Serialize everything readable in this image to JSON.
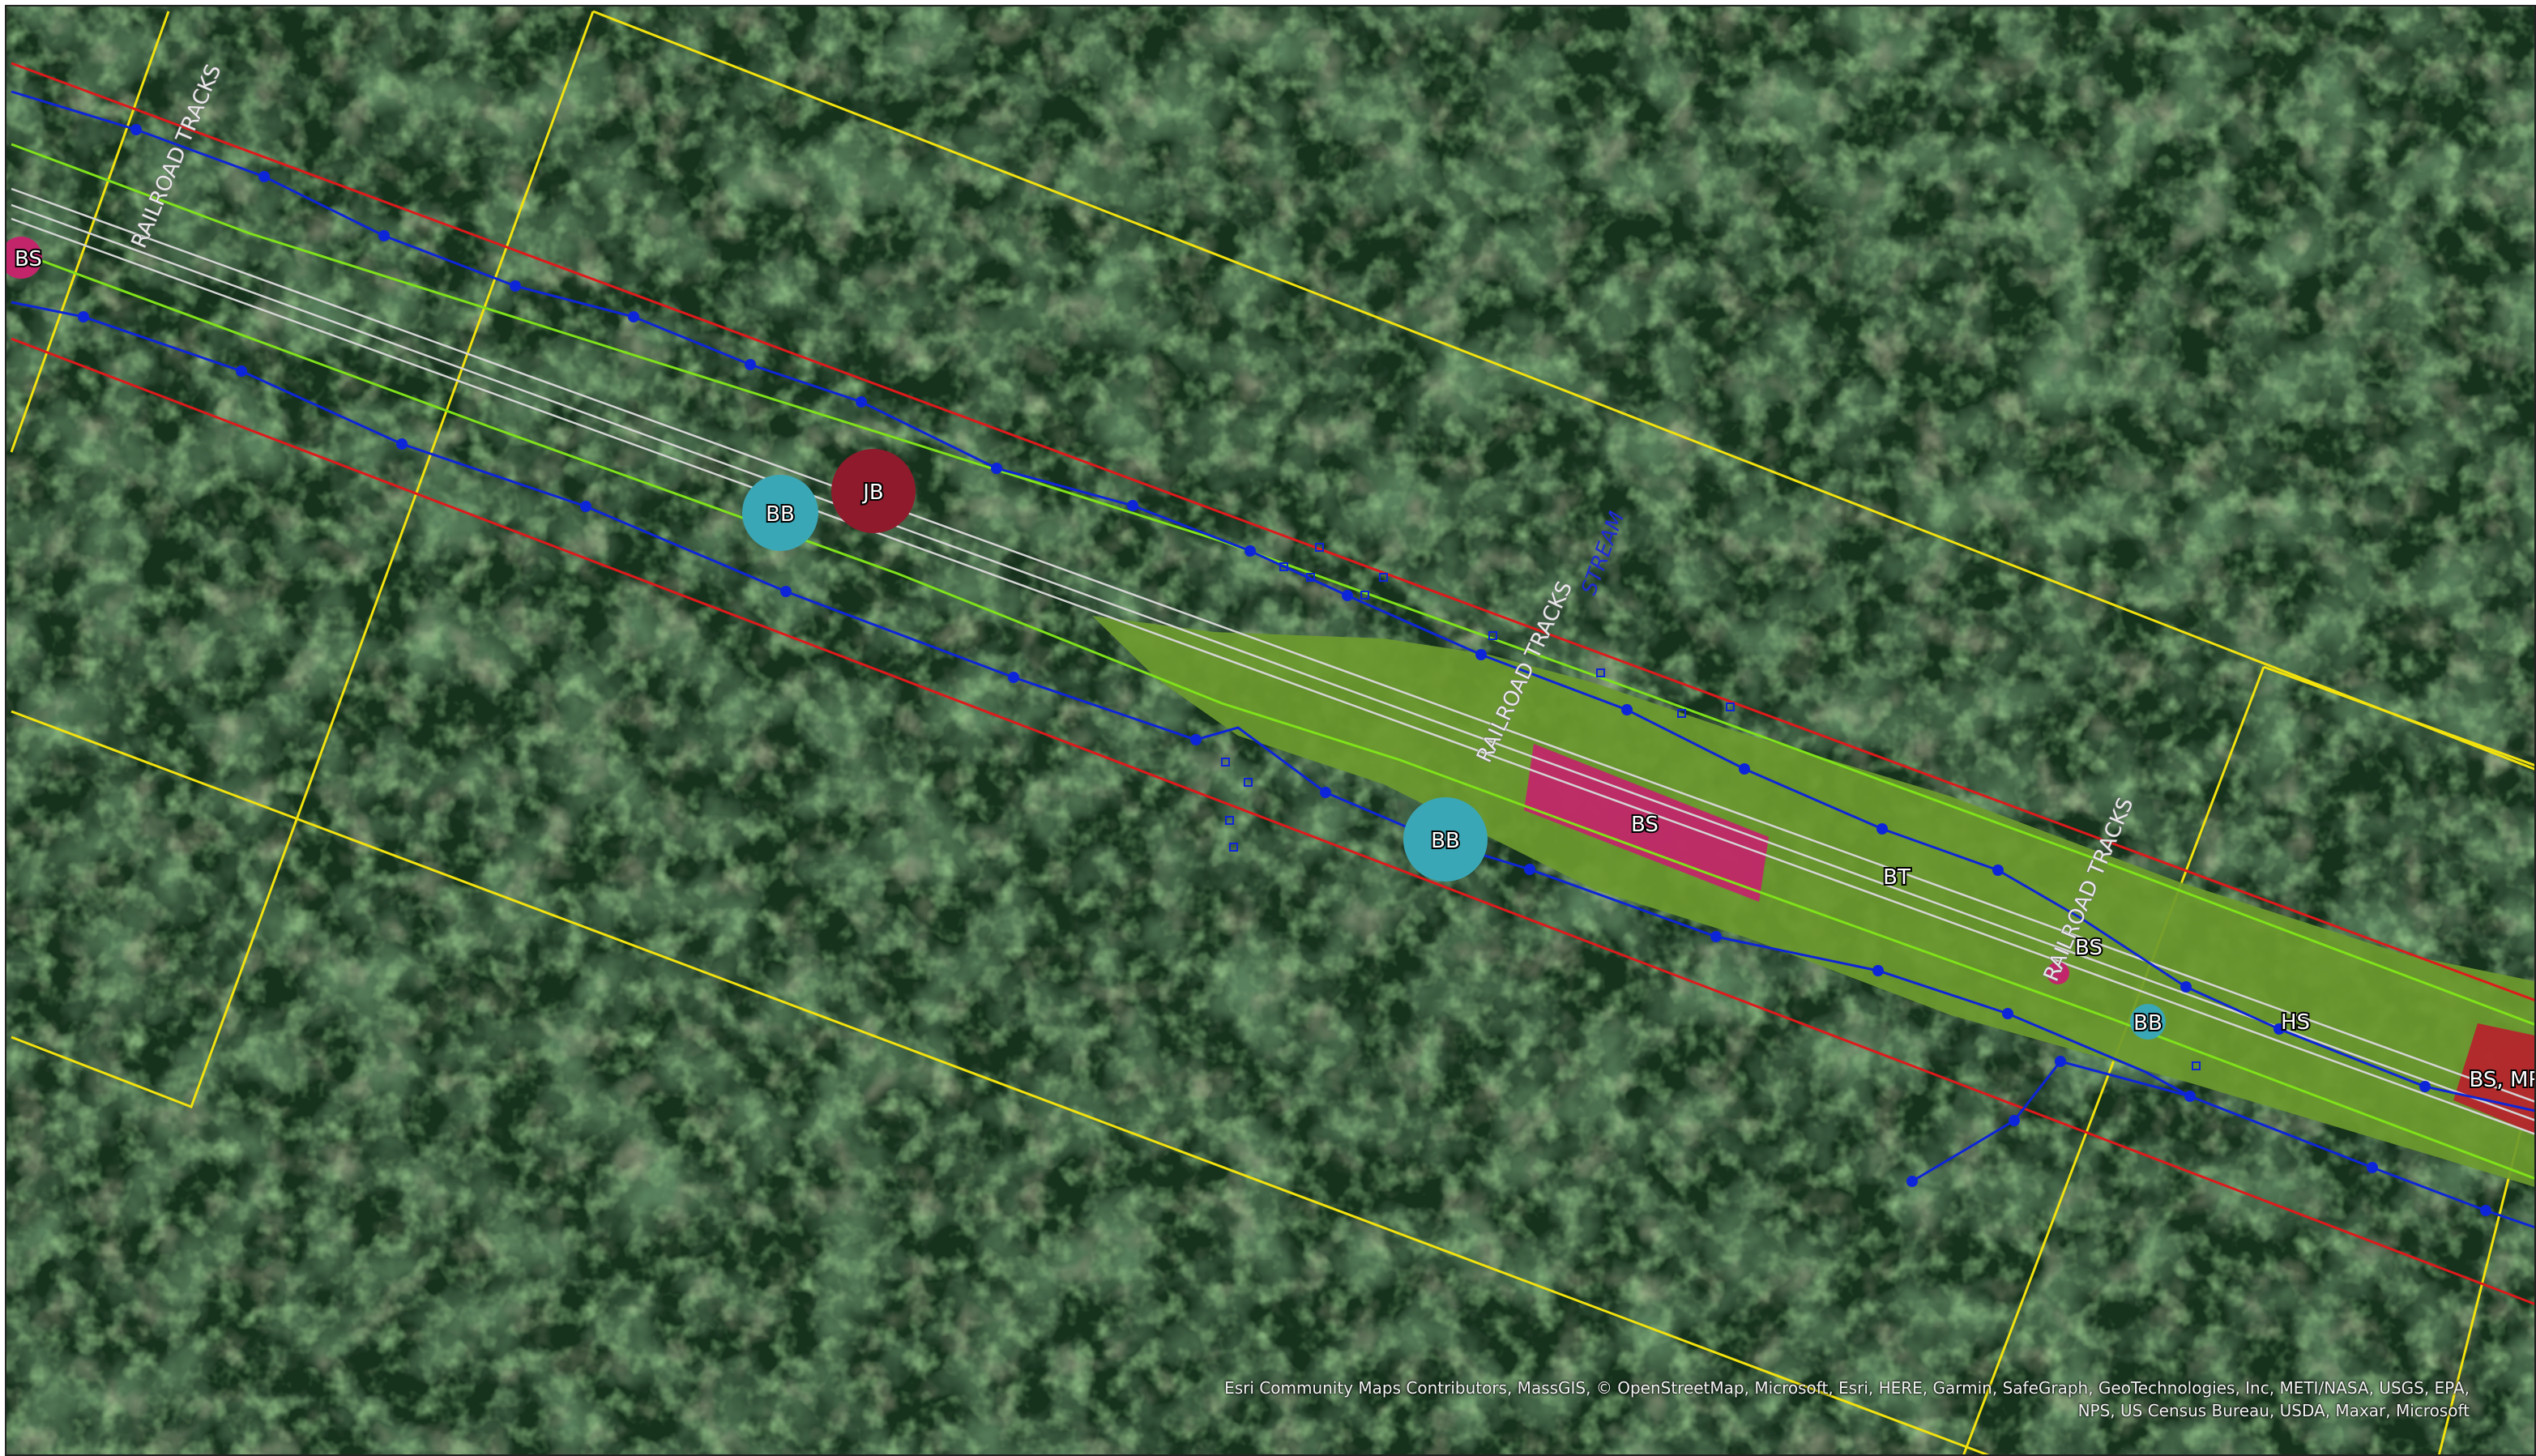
{
  "map": {
    "basemap": "satellite-imagery",
    "colors": {
      "forest_dark": "#16301d",
      "forest_mid": "#2f5a34",
      "forest_light": "#4e8a43",
      "clearing": "#6e6a4f",
      "corridor_fill": "#6c9a2e",
      "row_boundary": "#e0191b",
      "parcel_line": "#f2e20e",
      "wetland_line": "#0d25d8",
      "buffer_line": "#7fe21a",
      "track_line": "#cfcfcf",
      "bs_fill": "#c3256b",
      "jb_fill": "#8e1a2b",
      "bb_fill": "#3aa7b6",
      "mr_fill": "#b8222c"
    },
    "labels": {
      "railroad_tracks": "RAILROAD TRACKS",
      "stream": "STREAM",
      "bs": "BS",
      "bb": "BB",
      "jb": "JB",
      "bt": "BT",
      "hs": "HS",
      "bs_mr": "BS, MR"
    },
    "attribution": {
      "line1": "Esri Community Maps Contributors, MassGIS, © OpenStreetMap, Microsoft, Esri, HERE, Garmin, SafeGraph, GeoTechnologies, Inc, METI/NASA, USGS, EPA,",
      "line2": "NPS, US Census Bureau, USDA, Maxar, Microsoft"
    }
  }
}
